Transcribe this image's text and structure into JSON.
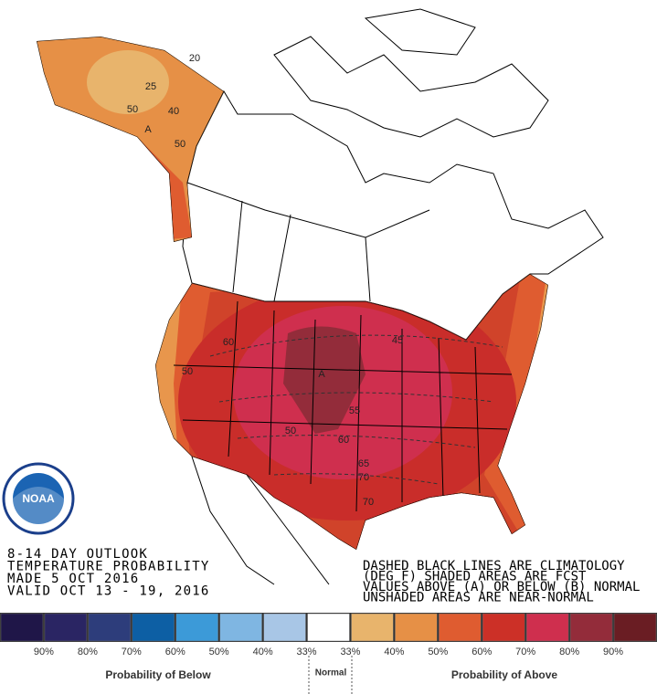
{
  "logo": {
    "text": "NOAA"
  },
  "outlook": {
    "lines": [
      "8-14 DAY OUTLOOK",
      "TEMPERATURE PROBABILITY",
      "MADE  5 OCT 2016",
      "VALID  OCT 13 - 19, 2016"
    ]
  },
  "notes": {
    "lines": [
      "DASHED BLACK LINES ARE CLIMATOLOGY",
      "(DEG F) SHADED AREAS ARE FCST",
      "VALUES ABOVE (A) OR BELOW (B) NORMAL",
      "UNSHADED AREAS ARE NEAR-NORMAL"
    ]
  },
  "map_labels": [
    "20",
    "25",
    "40",
    "50",
    "A",
    "50",
    "60",
    "50",
    "A",
    "45",
    "55",
    "60",
    "65",
    "70",
    "70",
    "50"
  ],
  "legend": {
    "colors": [
      "#1f1648",
      "#2a2563",
      "#2d3d7b",
      "#0d5fa4",
      "#3c9ad8",
      "#7fb6e2",
      "#a8c6e6",
      "#ffffff",
      "#e8b46c",
      "#e69046",
      "#df5c30",
      "#cc3027",
      "#cf2f4e",
      "#932c3a",
      "#6a1d23"
    ],
    "labels": [
      "90%",
      "80%",
      "70%",
      "60%",
      "50%",
      "40%",
      "33%",
      "33%",
      "40%",
      "50%",
      "60%",
      "70%",
      "80%",
      "90%"
    ],
    "below_title": "Probability of Below",
    "normal_title": "Normal",
    "above_title": "Probability of Above"
  }
}
